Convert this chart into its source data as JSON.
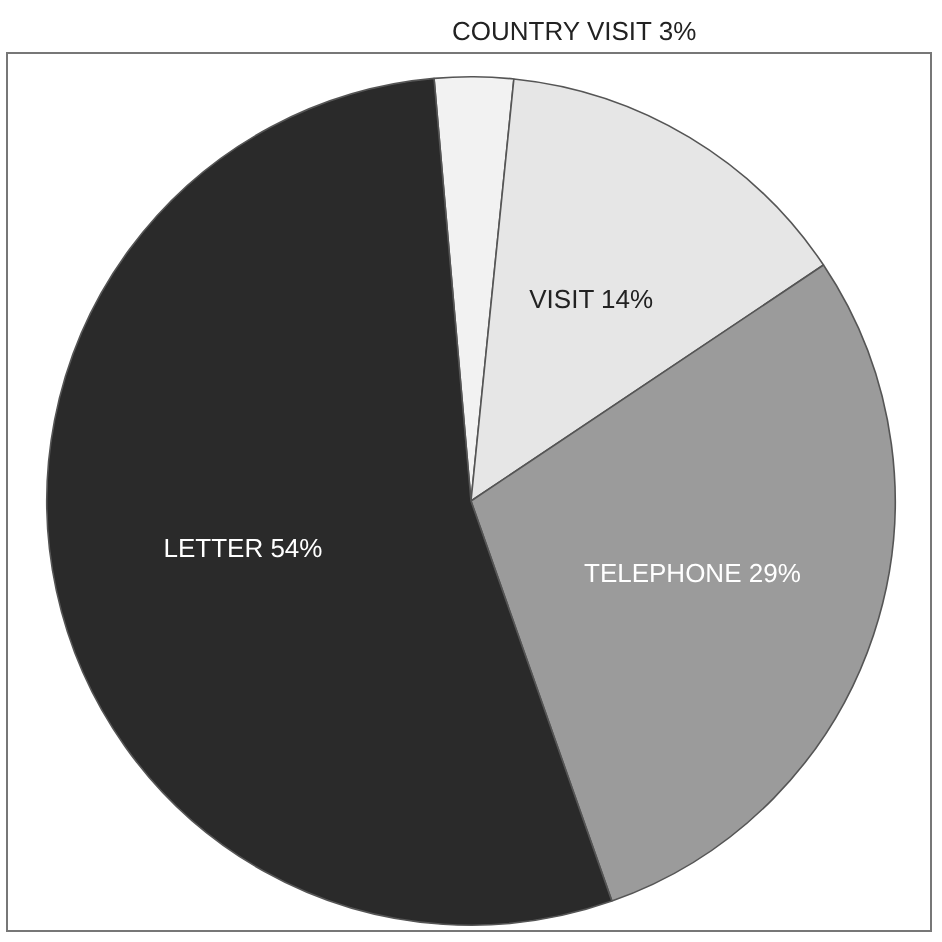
{
  "chart_data": {
    "type": "pie",
    "categories": [
      "COUNTRY VISIT",
      "VISIT",
      "TELEPHONE",
      "LETTER"
    ],
    "values": [
      3,
      14,
      29,
      54
    ],
    "colors": [
      "#f2f2f2",
      "#e6e6e6",
      "#9b9b9b",
      "#2a2a2a"
    ],
    "value_labels": [
      "3%",
      "14%",
      "29%",
      "54%"
    ],
    "legend": false
  }
}
